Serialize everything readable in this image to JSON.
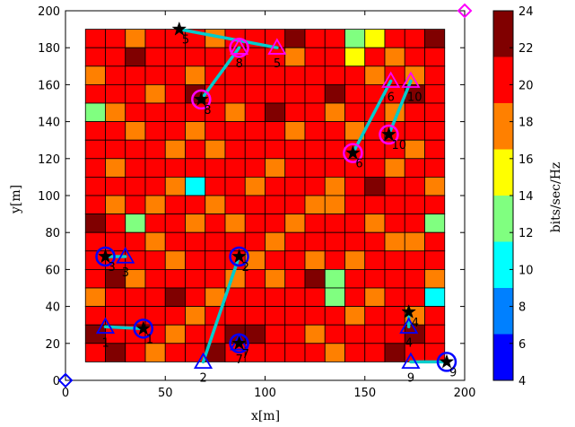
{
  "chart_data": {
    "type": "heatmap",
    "title": "",
    "xlabel": "x[m]",
    "ylabel": "y[m]",
    "xlim": [
      0,
      200
    ],
    "ylim": [
      0,
      200
    ],
    "xticks": [
      "0",
      "50",
      "100",
      "150",
      "200"
    ],
    "yticks": [
      "0",
      "20",
      "40",
      "60",
      "80",
      "100",
      "120",
      "140",
      "160",
      "180",
      "200"
    ],
    "grid_extent": {
      "x": [
        10,
        190
      ],
      "y": [
        10,
        190
      ],
      "cell": 10
    },
    "colorbar": {
      "label": "bits/sec/Hz",
      "range": [
        4,
        24
      ],
      "ticks": [
        "4",
        "6",
        "8",
        "10",
        "12",
        "14",
        "16",
        "18",
        "20",
        "22",
        "24"
      ],
      "colors": [
        "#0000ff",
        "#0080ff",
        "#00ffff",
        "#80ff80",
        "#ffff00",
        "#ff8000",
        "#ff0000",
        "#800000"
      ]
    },
    "heatmap_rows_top_to_bottom": [
      [
        21,
        19,
        17,
        21,
        19,
        19,
        17,
        19,
        21,
        21,
        23,
        21,
        19,
        13,
        15,
        21,
        19,
        23
      ],
      [
        19,
        21,
        23,
        19,
        19,
        21,
        19,
        19,
        21,
        19,
        17,
        19,
        21,
        15,
        19,
        17,
        21,
        19
      ],
      [
        17,
        19,
        21,
        21,
        19,
        17,
        19,
        21,
        19,
        21,
        19,
        21,
        21,
        19,
        17,
        19,
        17,
        21
      ],
      [
        19,
        21,
        19,
        17,
        19,
        23,
        19,
        19,
        21,
        19,
        21,
        19,
        23,
        21,
        19,
        21,
        23,
        19
      ],
      [
        13,
        17,
        19,
        21,
        19,
        19,
        21,
        17,
        19,
        23,
        21,
        19,
        17,
        19,
        21,
        17,
        19,
        21
      ],
      [
        21,
        19,
        17,
        19,
        21,
        17,
        19,
        21,
        19,
        19,
        17,
        21,
        19,
        17,
        19,
        21,
        21,
        19
      ],
      [
        19,
        21,
        21,
        19,
        17,
        19,
        17,
        19,
        21,
        21,
        19,
        19,
        21,
        19,
        21,
        19,
        17,
        21
      ],
      [
        21,
        17,
        19,
        21,
        19,
        21,
        19,
        19,
        21,
        17,
        19,
        21,
        19,
        21,
        19,
        17,
        19,
        19
      ],
      [
        19,
        19,
        21,
        19,
        17,
        11,
        19,
        19,
        17,
        21,
        19,
        19,
        17,
        19,
        23,
        19,
        21,
        17
      ],
      [
        21,
        17,
        19,
        17,
        19,
        19,
        17,
        21,
        19,
        19,
        19,
        17,
        17,
        19,
        21,
        19,
        19,
        21
      ],
      [
        23,
        19,
        13,
        19,
        21,
        17,
        19,
        17,
        21,
        19,
        17,
        19,
        21,
        19,
        17,
        19,
        21,
        13
      ],
      [
        19,
        21,
        19,
        17,
        19,
        21,
        19,
        21,
        19,
        17,
        19,
        21,
        19,
        21,
        19,
        17,
        17,
        19
      ],
      [
        21,
        19,
        21,
        19,
        17,
        19,
        21,
        19,
        17,
        21,
        19,
        17,
        19,
        17,
        21,
        19,
        21,
        19
      ],
      [
        19,
        23,
        17,
        21,
        19,
        21,
        19,
        17,
        19,
        17,
        21,
        23,
        13,
        19,
        19,
        21,
        19,
        17
      ],
      [
        17,
        19,
        21,
        19,
        23,
        19,
        17,
        21,
        19,
        21,
        19,
        19,
        13,
        21,
        17,
        19,
        21,
        11
      ],
      [
        21,
        21,
        19,
        21,
        19,
        17,
        19,
        19,
        21,
        19,
        19,
        21,
        19,
        17,
        21,
        19,
        17,
        21
      ],
      [
        23,
        21,
        19,
        19,
        17,
        19,
        21,
        23,
        23,
        19,
        21,
        17,
        21,
        19,
        19,
        21,
        23,
        19
      ],
      [
        21,
        23,
        21,
        17,
        19,
        21,
        23,
        21,
        19,
        21,
        19,
        19,
        17,
        21,
        19,
        23,
        21,
        21
      ]
    ],
    "markers": {
      "stars": [
        {
          "label": "5",
          "x": 57,
          "y": 190
        },
        {
          "label": "8",
          "x": 68,
          "y": 152
        },
        {
          "label": "6",
          "x": 144,
          "y": 123
        },
        {
          "label": "10",
          "x": 162,
          "y": 133
        },
        {
          "label": "3",
          "x": 20,
          "y": 67
        },
        {
          "label": "2",
          "x": 87,
          "y": 67
        },
        {
          "label": "1",
          "x": 39,
          "y": 28
        },
        {
          "label": "7",
          "x": 87,
          "y": 20
        },
        {
          "label": "4",
          "x": 172,
          "y": 37
        },
        {
          "label": "9",
          "x": 191,
          "y": 10
        }
      ],
      "triangles": [
        {
          "label": "5",
          "x": 106,
          "y": 180,
          "color": "#ff00ff"
        },
        {
          "label": "8",
          "x": 87,
          "y": 180,
          "color": "#ff00ff"
        },
        {
          "label": "6",
          "x": 163,
          "y": 162,
          "color": "#ff00ff"
        },
        {
          "label": "10",
          "x": 173,
          "y": 162,
          "color": "#ff00ff"
        },
        {
          "label": "3",
          "x": 30,
          "y": 67,
          "color": "#0000ff"
        },
        {
          "label": "2",
          "x": 69,
          "y": 10,
          "color": "#0000ff"
        },
        {
          "label": "1",
          "x": 20,
          "y": 29,
          "color": "#0000ff"
        },
        {
          "label": "7",
          "x": 87,
          "y": 20,
          "color": "#0000ff"
        },
        {
          "label": "4",
          "x": 172,
          "y": 29,
          "color": "#0000ff"
        },
        {
          "label": "9",
          "x": 173,
          "y": 10,
          "color": "#0000ff"
        }
      ],
      "circles": [
        {
          "x": 68,
          "y": 152,
          "color": "#ff00ff"
        },
        {
          "x": 144,
          "y": 123,
          "color": "#ff00ff"
        },
        {
          "x": 162,
          "y": 133,
          "color": "#ff00ff"
        },
        {
          "x": 87,
          "y": 180,
          "color": "#ff00ff"
        },
        {
          "x": 20,
          "y": 67,
          "color": "#0000ff"
        },
        {
          "x": 87,
          "y": 67,
          "color": "#0000ff"
        },
        {
          "x": 39,
          "y": 28,
          "color": "#0000ff"
        },
        {
          "x": 87,
          "y": 20,
          "color": "#0000ff"
        },
        {
          "x": 191,
          "y": 10,
          "color": "#0000ff"
        }
      ],
      "diamonds": [
        {
          "x": 0,
          "y": 0,
          "color": "#0000ff"
        },
        {
          "x": 200,
          "y": 200,
          "color": "#ff00ff"
        }
      ],
      "links": [
        {
          "from": [
            57,
            190
          ],
          "to": [
            106,
            180
          ]
        },
        {
          "from": [
            68,
            152
          ],
          "to": [
            87,
            180
          ]
        },
        {
          "from": [
            144,
            123
          ],
          "to": [
            163,
            162
          ]
        },
        {
          "from": [
            162,
            133
          ],
          "to": [
            173,
            162
          ]
        },
        {
          "from": [
            20,
            67
          ],
          "to": [
            30,
            67
          ]
        },
        {
          "from": [
            87,
            67
          ],
          "to": [
            69,
            10
          ]
        },
        {
          "from": [
            39,
            28
          ],
          "to": [
            20,
            29
          ]
        },
        {
          "from": [
            172,
            37
          ],
          "to": [
            172,
            29
          ]
        },
        {
          "from": [
            191,
            10
          ],
          "to": [
            173,
            10
          ]
        }
      ],
      "link_color": "#00cccc"
    }
  }
}
